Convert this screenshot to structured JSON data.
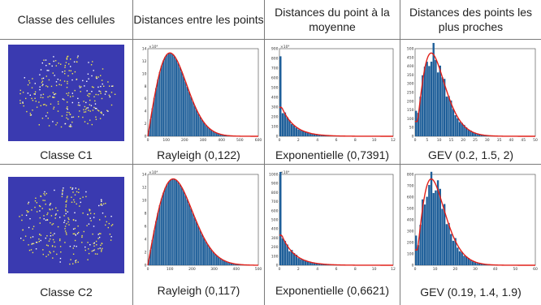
{
  "headers": [
    "Classe des cellules",
    "Distances entre les points",
    "Distances du point à la moyenne",
    "Distances des points les plus proches"
  ],
  "rows": [
    {
      "class_label": "Classe C1",
      "captions": [
        "Rayleigh (0,122)",
        "Exponentielle (0,7391)",
        "GEV (0.2, 1.5, 2)"
      ],
      "plots": [
        {
          "xticks": [
            "0",
            "100",
            "200",
            "300",
            "400",
            "500",
            "600"
          ],
          "yticks": [
            "0",
            "2",
            "4",
            "6",
            "8",
            "10",
            "12",
            "14"
          ],
          "exponent": "×10⁴"
        },
        {
          "xticks": [
            "0",
            "2",
            "4",
            "6",
            "8",
            "10",
            "12"
          ],
          "yticks": [
            "0",
            "100",
            "200",
            "300",
            "400",
            "500",
            "600",
            "700",
            "800",
            "900"
          ],
          "exponent": "×10⁴"
        },
        {
          "xticks": [
            "0",
            "5",
            "10",
            "15",
            "20",
            "25",
            "30",
            "35",
            "40",
            "45",
            "50"
          ],
          "yticks": [
            "0",
            "50",
            "100",
            "150",
            "200",
            "250",
            "300",
            "350",
            "400",
            "450",
            "500"
          ],
          "exponent": ""
        }
      ]
    },
    {
      "class_label": "Classe C2",
      "captions": [
        "Rayleigh (0,117)",
        "Exponentielle (0,6621)",
        "GEV (0.19, 1.4, 1.9)"
      ],
      "plots": [
        {
          "xticks": [
            "0",
            "100",
            "200",
            "300",
            "400",
            "500"
          ],
          "yticks": [
            "0",
            "2",
            "4",
            "6",
            "8",
            "10",
            "12",
            "14"
          ],
          "exponent": "×10⁴"
        },
        {
          "xticks": [
            "0",
            "2",
            "4",
            "6",
            "8",
            "10",
            "12"
          ],
          "yticks": [
            "0",
            "100",
            "200",
            "300",
            "400",
            "500",
            "600",
            "700",
            "800",
            "900",
            "1000"
          ],
          "exponent": "×10⁴"
        },
        {
          "xticks": [
            "0",
            "10",
            "20",
            "30",
            "40",
            "50",
            "60"
          ],
          "yticks": [
            "0",
            "100",
            "200",
            "300",
            "400",
            "500",
            "600",
            "700",
            "800"
          ],
          "exponent": ""
        }
      ]
    }
  ],
  "colors": {
    "bar": "#1f5f99",
    "fit": "#e0201a",
    "cellbg": "#3a3ab0",
    "dot": "#f2e84a",
    "grid": "#7a7a7a"
  }
}
